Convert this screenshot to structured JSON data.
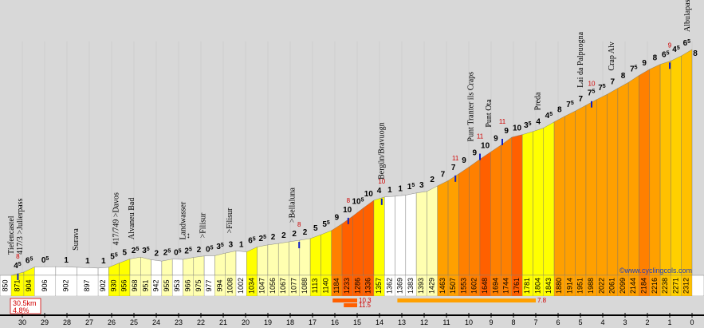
{
  "chart_data": {
    "type": "area",
    "title": "",
    "subtitle": "",
    "xlabel": "",
    "ylabel": "",
    "x_unit": "km to summit",
    "y_unit": "m",
    "x_range": [
      30.5,
      0
    ],
    "y_range": [
      850,
      2312
    ],
    "start_elevation": "850",
    "end_elevation": "2312",
    "km_markers": [
      "30",
      "29",
      "28",
      "27",
      "26",
      "25",
      "24",
      "23",
      "22",
      "21",
      "20",
      "19",
      "18",
      "17",
      "16",
      "15",
      "14",
      "13",
      "12",
      "11",
      "10",
      "9",
      "8",
      "7",
      "6",
      "5",
      "4",
      "3",
      "2",
      "1",
      "0"
    ],
    "segments": [
      {
        "elev": "871",
        "grade": "4⁵",
        "color": "#ffff00",
        "w": 0.6
      },
      {
        "elev": "904",
        "grade": "6⁵",
        "color": "#ffff00",
        "w": 0.5
      },
      {
        "elev": "906",
        "grade": "0⁵",
        "color": "#ffffff",
        "w": 1
      },
      {
        "elev": "902",
        "grade": "1",
        "color": "#ffffff",
        "w": 1
      },
      {
        "elev": "897",
        "grade": "1",
        "color": "#ffffff",
        "w": 1
      },
      {
        "elev": "902",
        "grade": "1",
        "color": "#ffffff",
        "w": 0.5
      },
      {
        "elev": "930",
        "grade": "5⁵",
        "color": "#ffff00",
        "w": 0.5
      },
      {
        "elev": "956",
        "grade": "5",
        "color": "#ffff00",
        "w": 0.5
      },
      {
        "elev": "968",
        "grade": "2⁵",
        "color": "#ffffb0",
        "w": 0.5
      },
      {
        "elev": "951",
        "grade": "3⁵",
        "color": "#ffffb0",
        "w": 0.5
      },
      {
        "elev": "942",
        "grade": "2",
        "color": "#ffffff",
        "w": 0.5
      },
      {
        "elev": "955",
        "grade": "2⁵",
        "color": "#ffffb0",
        "w": 0.5
      },
      {
        "elev": "953",
        "grade": "0⁵",
        "color": "#ffffff",
        "w": 0.5
      },
      {
        "elev": "966",
        "grade": "2⁵",
        "color": "#ffffb0",
        "w": 0.5
      },
      {
        "elev": "975",
        "grade": "2",
        "color": "#ffffb0",
        "w": 0.5
      },
      {
        "elev": "977",
        "grade": "0⁵",
        "color": "#ffffff",
        "w": 0.5
      },
      {
        "elev": "994",
        "grade": "3⁵",
        "color": "#ffffb0",
        "w": 0.5
      },
      {
        "elev": "1008",
        "grade": "3",
        "color": "#ffffb0",
        "w": 0.5
      },
      {
        "elev": "1002",
        "grade": "1",
        "color": "#ffffff",
        "w": 0.5
      },
      {
        "elev": "1034",
        "grade": "6⁵",
        "color": "#ffff00",
        "w": 0.5
      },
      {
        "elev": "1047",
        "grade": "2⁵",
        "color": "#ffffb0",
        "w": 0.5
      },
      {
        "elev": "1056",
        "grade": "2",
        "color": "#ffffb0",
        "w": 0.5
      },
      {
        "elev": "1067",
        "grade": "2",
        "color": "#ffffb0",
        "w": 0.5
      },
      {
        "elev": "1077",
        "grade": "2",
        "color": "#ffffb0",
        "w": 0.5
      },
      {
        "elev": "1088",
        "grade": "2",
        "color": "#ffffb0",
        "w": 0.5
      },
      {
        "elev": "1113",
        "grade": "5",
        "color": "#ffff00",
        "w": 0.5
      },
      {
        "elev": "1140",
        "grade": "5⁵",
        "color": "#ffff00",
        "w": 0.5
      },
      {
        "elev": "1184",
        "grade": "9",
        "color": "#ff8000",
        "w": 0.5
      },
      {
        "elev": "1233",
        "grade": "10",
        "color": "#ff6000",
        "w": 0.5
      },
      {
        "elev": "1286",
        "grade": "10⁵",
        "color": "#ff6000",
        "w": 0.5
      },
      {
        "elev": "1336",
        "grade": "10",
        "color": "#ff6000",
        "w": 0.5
      },
      {
        "elev": "1357",
        "grade": "4",
        "color": "#ffff00",
        "w": 0.5
      },
      {
        "elev": "1362",
        "grade": "1",
        "color": "#ffffff",
        "w": 0.5
      },
      {
        "elev": "1369",
        "grade": "1",
        "color": "#ffffff",
        "w": 0.5
      },
      {
        "elev": "1383",
        "grade": "1⁵",
        "color": "#ffffff",
        "w": 0.5
      },
      {
        "elev": "1393",
        "grade": "3",
        "color": "#ffffb0",
        "w": 0.5
      },
      {
        "elev": "1429",
        "grade": "2",
        "color": "#ffffb0",
        "w": 0.5
      },
      {
        "elev": "1463",
        "grade": "7",
        "color": "#ffa000",
        "w": 0.5
      },
      {
        "elev": "1507",
        "grade": "7",
        "color": "#ffa000",
        "w": 0.5
      },
      {
        "elev": "1553",
        "grade": "9",
        "color": "#ff8000",
        "w": 0.5
      },
      {
        "elev": "1602",
        "grade": "9",
        "color": "#ff8000",
        "w": 0.5
      },
      {
        "elev": "1648",
        "grade": "10",
        "color": "#ff6000",
        "w": 0.5
      },
      {
        "elev": "1694",
        "grade": "9",
        "color": "#ff8000",
        "w": 0.5
      },
      {
        "elev": "1744",
        "grade": "9",
        "color": "#ff8000",
        "w": 0.5
      },
      {
        "elev": "1761",
        "grade": "10",
        "color": "#ff6000",
        "w": 0.5
      },
      {
        "elev": "1781",
        "grade": "3⁵",
        "color": "#ffff00",
        "w": 0.5
      },
      {
        "elev": "1804",
        "grade": "4",
        "color": "#ffff00",
        "w": 0.5
      },
      {
        "elev": "1843",
        "grade": "4⁵",
        "color": "#ffff00",
        "w": 0.5
      },
      {
        "elev": "1880",
        "grade": "8",
        "color": "#ffa000",
        "w": 0.5
      },
      {
        "elev": "1914",
        "grade": "7⁵",
        "color": "#ffa000",
        "w": 0.5
      },
      {
        "elev": "1951",
        "grade": "7",
        "color": "#ffa000",
        "w": 0.5
      },
      {
        "elev": "1988",
        "grade": "7⁵",
        "color": "#ffa000",
        "w": 0.5
      },
      {
        "elev": "2022",
        "grade": "7⁵",
        "color": "#ffa000",
        "w": 0.5
      },
      {
        "elev": "2061",
        "grade": "7",
        "color": "#ffa000",
        "w": 0.5
      },
      {
        "elev": "2099",
        "grade": "8",
        "color": "#ffa000",
        "w": 0.5
      },
      {
        "elev": "2144",
        "grade": "7⁵",
        "color": "#ffa000",
        "w": 0.5
      },
      {
        "elev": "2184",
        "grade": "9",
        "color": "#ff8000",
        "w": 0.5
      },
      {
        "elev": "2216",
        "grade": "8",
        "color": "#ffa000",
        "w": 0.5
      },
      {
        "elev": "2238",
        "grade": "6⁵",
        "color": "#ffc000",
        "w": 0.5
      },
      {
        "elev": "2271",
        "grade": "4⁵",
        "color": "#ffd000",
        "w": 0.5
      },
      {
        "elev": "2312",
        "grade": "6⁵",
        "color": "#ffc000",
        "w": 0.5
      }
    ],
    "extra_grade_label": "8",
    "max_grades": [
      {
        "km": 30.2,
        "label": "8"
      },
      {
        "km": 17.6,
        "label": "8"
      },
      {
        "km": 15.4,
        "label": "8"
      },
      {
        "km": 13.9,
        "label": "10"
      },
      {
        "km": 10.6,
        "label": "11"
      },
      {
        "km": 9.5,
        "label": "11"
      },
      {
        "km": 8.5,
        "label": "11"
      },
      {
        "km": 4.5,
        "label": "10"
      },
      {
        "km": 1.0,
        "label": "9"
      }
    ],
    "places": [
      {
        "name": "Tiefencastel",
        "km": 30.4
      },
      {
        "name": "417/3 >Julierpass",
        "km": 30.0
      },
      {
        "name": "Surava",
        "km": 27.5
      },
      {
        "name": "417/749 >Davos",
        "km": 25.7
      },
      {
        "name": "Alvaneu Bad",
        "km": 25.0
      },
      {
        "name": "Landwasser",
        "km": 22.7
      },
      {
        "name": "↔",
        "km": 22.5
      },
      {
        "name": ">Filisur",
        "km": 21.8
      },
      {
        "name": ">Filisur",
        "km": 20.6
      },
      {
        "name": ">Bellaluna",
        "km": 17.8
      },
      {
        "name": "Bergün/Bravuogn",
        "km": 13.8
      },
      {
        "name": "Punt Tranter ils Craps",
        "km": 9.8
      },
      {
        "name": "Punt Ota",
        "km": 9.0
      },
      {
        "name": "Preda",
        "km": 6.8
      },
      {
        "name": "Lai da Palpuogna",
        "km": 4.9
      },
      {
        "name": "Crap Alv",
        "km": 3.5
      },
      {
        "name": "Albulapass",
        "km": 0.1
      }
    ],
    "summary_line1": "30.5km",
    "summary_line2": "4.8%",
    "hard_bars": [
      {
        "from_km": 16.1,
        "to_km": 15.0,
        "label": "10.3",
        "color": "#ff6000"
      },
      {
        "from_km": 15.6,
        "to_km": 15.0,
        "label": "11.5",
        "color": "#ff6000"
      },
      {
        "from_km": 13.2,
        "to_km": 7.0,
        "label": "7.8",
        "color": "#ffa000"
      }
    ],
    "credit": "©www.cyclingcols.com"
  }
}
